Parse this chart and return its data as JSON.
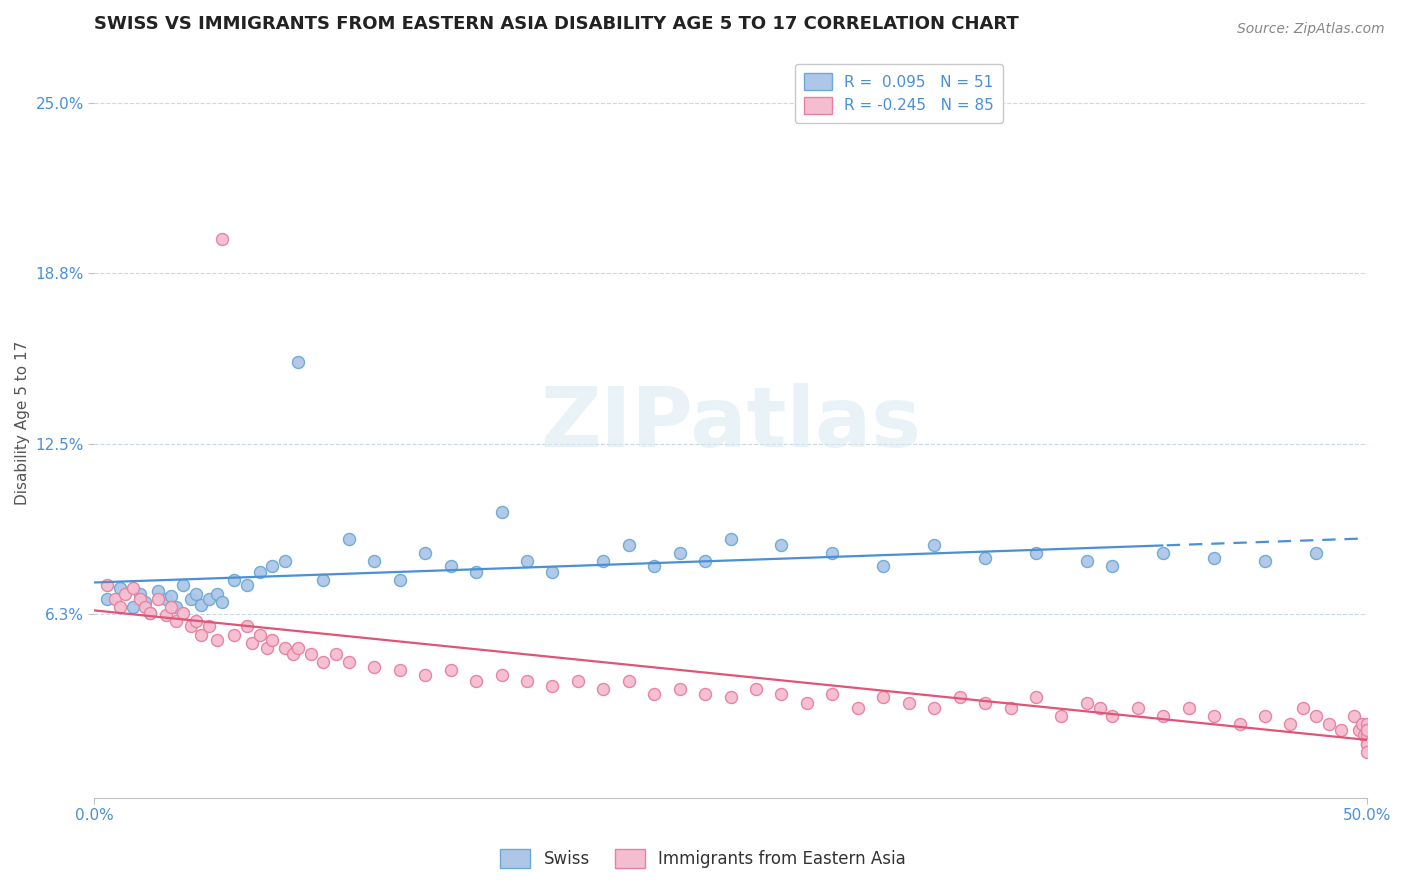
{
  "title": "SWISS VS IMMIGRANTS FROM EASTERN ASIA DISABILITY AGE 5 TO 17 CORRELATION CHART",
  "source": "Source: ZipAtlas.com",
  "ylabel": "Disability Age 5 to 17",
  "xlim": [
    0.0,
    0.5
  ],
  "ylim": [
    -0.005,
    0.27
  ],
  "xticks": [
    0.0,
    0.5
  ],
  "xticklabels": [
    "0.0%",
    "50.0%"
  ],
  "yticks": [
    0.0625,
    0.125,
    0.1875,
    0.25
  ],
  "yticklabels": [
    "6.3%",
    "12.5%",
    "18.8%",
    "25.0%"
  ],
  "swiss_color": "#aec6e8",
  "swiss_edge_color": "#6aaad4",
  "imm_color": "#f5bdd0",
  "imm_edge_color": "#e8809e",
  "trend_swiss_color": "#4a90d9",
  "trend_imm_color": "#e05575",
  "background_color": "#ffffff",
  "legend_swiss_label": "R =  0.095   N = 51",
  "legend_imm_label": "R = -0.245   N = 85",
  "legend_swiss_short": "Swiss",
  "legend_imm_short": "Immigrants from Eastern Asia",
  "watermark": "ZIPatlas",
  "title_fontsize": 13,
  "axis_label_fontsize": 11,
  "tick_fontsize": 11,
  "legend_fontsize": 11,
  "source_fontsize": 10,
  "swiss_x": [
    0.005,
    0.01,
    0.015,
    0.018,
    0.02,
    0.022,
    0.025,
    0.028,
    0.03,
    0.032,
    0.035,
    0.038,
    0.04,
    0.042,
    0.045,
    0.048,
    0.05,
    0.055,
    0.06,
    0.065,
    0.07,
    0.075,
    0.08,
    0.09,
    0.1,
    0.11,
    0.12,
    0.13,
    0.14,
    0.15,
    0.16,
    0.17,
    0.18,
    0.2,
    0.21,
    0.22,
    0.23,
    0.24,
    0.25,
    0.27,
    0.29,
    0.31,
    0.33,
    0.35,
    0.37,
    0.39,
    0.4,
    0.42,
    0.44,
    0.46,
    0.48
  ],
  "swiss_y": [
    0.068,
    0.072,
    0.065,
    0.07,
    0.067,
    0.063,
    0.071,
    0.068,
    0.069,
    0.065,
    0.073,
    0.068,
    0.07,
    0.066,
    0.068,
    0.07,
    0.067,
    0.075,
    0.073,
    0.078,
    0.08,
    0.082,
    0.155,
    0.075,
    0.09,
    0.082,
    0.075,
    0.085,
    0.08,
    0.078,
    0.1,
    0.082,
    0.078,
    0.082,
    0.088,
    0.08,
    0.085,
    0.082,
    0.09,
    0.088,
    0.085,
    0.08,
    0.088,
    0.083,
    0.085,
    0.082,
    0.08,
    0.085,
    0.083,
    0.082,
    0.085
  ],
  "imm_x": [
    0.005,
    0.008,
    0.01,
    0.012,
    0.015,
    0.018,
    0.02,
    0.022,
    0.025,
    0.028,
    0.03,
    0.032,
    0.035,
    0.038,
    0.04,
    0.042,
    0.045,
    0.048,
    0.05,
    0.055,
    0.06,
    0.062,
    0.065,
    0.068,
    0.07,
    0.075,
    0.078,
    0.08,
    0.085,
    0.09,
    0.095,
    0.1,
    0.11,
    0.12,
    0.13,
    0.14,
    0.15,
    0.16,
    0.17,
    0.18,
    0.19,
    0.2,
    0.21,
    0.22,
    0.23,
    0.24,
    0.25,
    0.26,
    0.27,
    0.28,
    0.29,
    0.3,
    0.31,
    0.32,
    0.33,
    0.34,
    0.35,
    0.36,
    0.37,
    0.38,
    0.39,
    0.395,
    0.4,
    0.41,
    0.42,
    0.43,
    0.44,
    0.45,
    0.46,
    0.47,
    0.475,
    0.48,
    0.485,
    0.49,
    0.495,
    0.497,
    0.498,
    0.499,
    0.5,
    0.5,
    0.5,
    0.5,
    0.5,
    0.5,
    0.5
  ],
  "imm_y": [
    0.073,
    0.068,
    0.065,
    0.07,
    0.072,
    0.068,
    0.065,
    0.063,
    0.068,
    0.062,
    0.065,
    0.06,
    0.063,
    0.058,
    0.06,
    0.055,
    0.058,
    0.053,
    0.2,
    0.055,
    0.058,
    0.052,
    0.055,
    0.05,
    0.053,
    0.05,
    0.048,
    0.05,
    0.048,
    0.045,
    0.048,
    0.045,
    0.043,
    0.042,
    0.04,
    0.042,
    0.038,
    0.04,
    0.038,
    0.036,
    0.038,
    0.035,
    0.038,
    0.033,
    0.035,
    0.033,
    0.032,
    0.035,
    0.033,
    0.03,
    0.033,
    0.028,
    0.032,
    0.03,
    0.028,
    0.032,
    0.03,
    0.028,
    0.032,
    0.025,
    0.03,
    0.028,
    0.025,
    0.028,
    0.025,
    0.028,
    0.025,
    0.022,
    0.025,
    0.022,
    0.028,
    0.025,
    0.022,
    0.02,
    0.025,
    0.02,
    0.022,
    0.018,
    0.022,
    0.02,
    0.018,
    0.015,
    0.02,
    0.015,
    0.012
  ]
}
